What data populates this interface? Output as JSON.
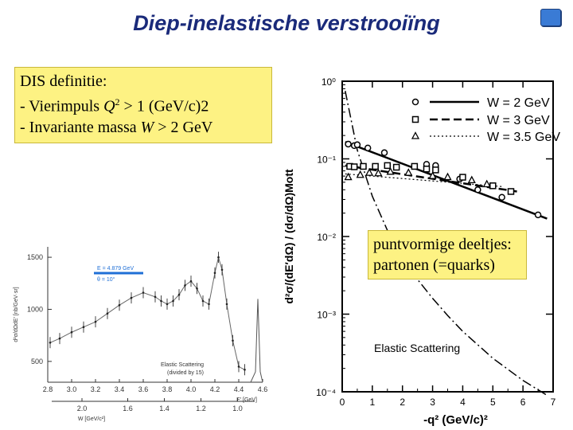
{
  "slide": {
    "title": "Diep-inelastische verstrooiïng"
  },
  "definition_box": {
    "heading": "DIS definitie:",
    "line1_prefix": " - Vierimpuls ",
    "line1_var": "Q",
    "line1_sup": "2",
    "line1_suffix": " > 1 (GeV/c)2",
    "line2_prefix": " - Invariante massa ",
    "line2_var": "W",
    "line2_suffix": " > 2 GeV"
  },
  "parton_box": {
    "line1": "puntvormige deeltjes:",
    "line2": "partonen (=quarks)"
  },
  "chart_data": [
    {
      "type": "line",
      "title": "",
      "legend_placement": "top-right",
      "xlabel": "-q² (GeV/c)²",
      "ylabel": "d²σ/(dE′dΩ) / (dσ/dΩ)Mott",
      "xlim": [
        0,
        7
      ],
      "ylim": [
        0.0001,
        1
      ],
      "yscale": "log",
      "x_ticks": [
        "0",
        "1",
        "2",
        "3",
        "4",
        "5",
        "6",
        "7"
      ],
      "y_ticks": [
        "10⁰",
        "10⁻¹",
        "10⁻²",
        "10⁻³",
        "10⁻⁴"
      ],
      "annotation": "Elastic  Scattering",
      "series": [
        {
          "name": "W = 2 GeV",
          "marker": "circle",
          "x": [
            0.2,
            0.4,
            0.5,
            0.85,
            1.4,
            2.8,
            3.1,
            3.9,
            4.5,
            5.3,
            6.5
          ],
          "y": [
            0.155,
            0.148,
            0.152,
            0.138,
            0.12,
            0.085,
            0.082,
            0.055,
            0.04,
            0.032,
            0.019
          ]
        },
        {
          "name": "W = 3 GeV",
          "marker": "square",
          "x": [
            0.25,
            0.4,
            0.7,
            1.1,
            1.5,
            1.8,
            2.4,
            2.8,
            3.1,
            4.0,
            5.0,
            5.6
          ],
          "y": [
            0.08,
            0.079,
            0.08,
            0.08,
            0.082,
            0.078,
            0.08,
            0.074,
            0.072,
            0.058,
            0.045,
            0.038
          ]
        },
        {
          "name": "W = 3.5 GeV",
          "marker": "triangle",
          "x": [
            0.2,
            0.6,
            0.9,
            1.2,
            1.6,
            2.2,
            3.0,
            3.5,
            4.3,
            4.8
          ],
          "y": [
            0.058,
            0.062,
            0.066,
            0.065,
            0.068,
            0.066,
            0.06,
            0.058,
            0.053,
            0.047
          ]
        }
      ],
      "fit_lines": [
        {
          "for": "W = 2 GeV",
          "style": "solid",
          "x": [
            0.1,
            6.8
          ],
          "y": [
            0.165,
            0.017
          ]
        },
        {
          "for": "W = 3 GeV",
          "style": "dashed",
          "x": [
            0.1,
            5.8
          ],
          "y": [
            0.082,
            0.038
          ]
        },
        {
          "for": "W = 3.5 GeV",
          "style": "dotted",
          "x": [
            0.1,
            5.3
          ],
          "y": [
            0.064,
            0.044
          ]
        },
        {
          "for": "Elastic  Scattering",
          "style": "dash-dot",
          "x": [
            0.1,
            0.5,
            1.0,
            1.5,
            2.0,
            2.5,
            3.0,
            3.5,
            4.0,
            5.0,
            6.0,
            6.8
          ],
          "y": [
            0.75,
            0.13,
            0.033,
            0.012,
            0.0055,
            0.0028,
            0.0016,
            0.00096,
            0.0006,
            0.00027,
            0.00014,
            9e-05
          ]
        }
      ]
    },
    {
      "type": "line",
      "title": "",
      "xlabel": "E′ [GeV]",
      "x2label": "W [GeV/c²]",
      "ylabel": "d²σ/dΩdE′ [nb/GeV·sr]",
      "xlim": [
        2.8,
        4.6
      ],
      "ylim": [
        300,
        1600
      ],
      "x_ticks": [
        "2.8",
        "3.0",
        "3.2",
        "3.4",
        "3.6",
        "3.8",
        "4.0",
        "4.2",
        "4.4",
        "4.6"
      ],
      "x2_ticks": [
        "2.0",
        "1.6",
        "1.4",
        "1.2",
        "1.0"
      ],
      "y_ticks": [
        "500",
        "1000",
        "1500"
      ],
      "legend_lines": [
        "E = 4.879 GeV",
        "θ = 10°"
      ],
      "annotation": [
        "Elastic Scattering",
        "(divided by 15)"
      ],
      "series": [
        {
          "name": "data",
          "x": [
            2.82,
            2.9,
            3.0,
            3.1,
            3.2,
            3.3,
            3.4,
            3.5,
            3.6,
            3.7,
            3.75,
            3.8,
            3.85,
            3.9,
            3.95,
            4.0,
            4.05,
            4.1,
            4.15,
            4.2,
            4.23,
            4.26,
            4.3,
            4.35,
            4.4,
            4.45
          ],
          "y": [
            680,
            720,
            780,
            830,
            880,
            960,
            1040,
            1110,
            1160,
            1120,
            1080,
            1050,
            1080,
            1140,
            1230,
            1270,
            1200,
            1080,
            1050,
            1350,
            1500,
            1380,
            1050,
            700,
            450,
            420
          ]
        },
        {
          "name": "elastic peak",
          "x": [
            4.5,
            4.54,
            4.56,
            4.58,
            4.6
          ],
          "y": [
            300,
            400,
            1100,
            400,
            300
          ]
        }
      ]
    }
  ]
}
